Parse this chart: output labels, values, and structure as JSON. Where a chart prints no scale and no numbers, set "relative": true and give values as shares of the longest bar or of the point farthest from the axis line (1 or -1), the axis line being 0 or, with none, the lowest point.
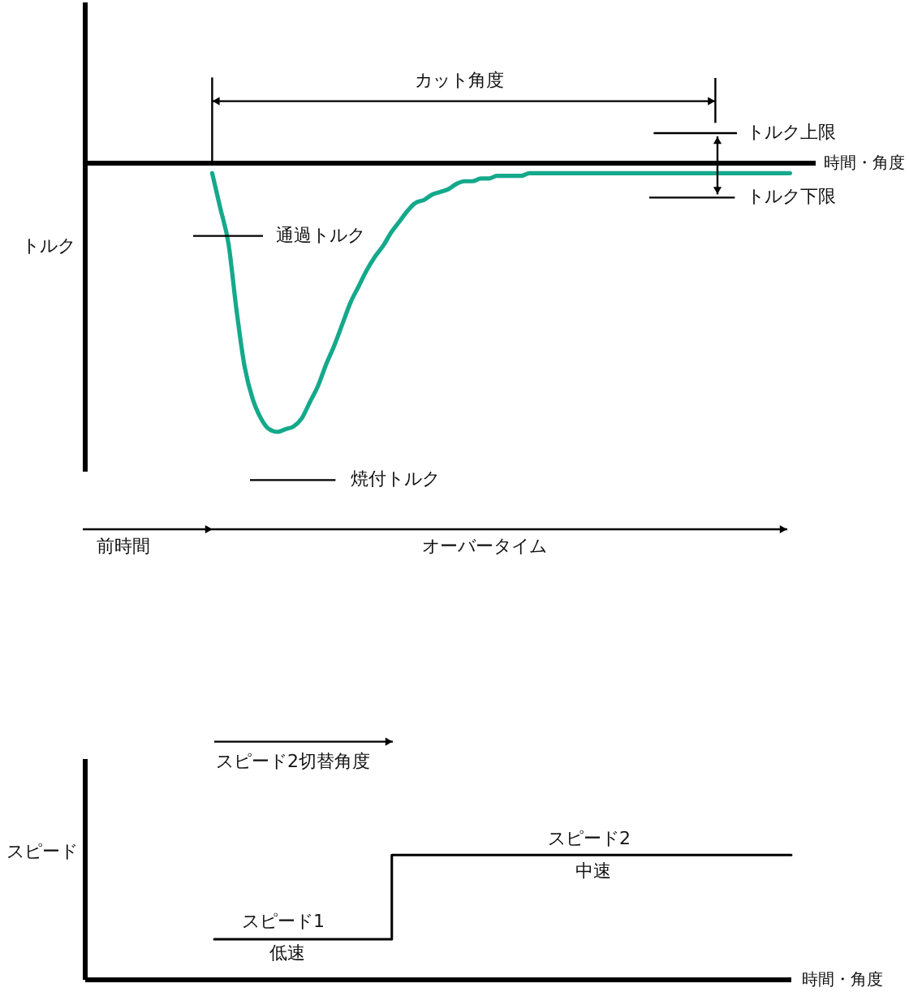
{
  "chart_data": [
    {
      "type": "line",
      "xlabel": "時間・角度",
      "ylabel": "トルク",
      "relative": true,
      "tick_labels": false,
      "color": "#14a98b",
      "categories": [
        null,
        null,
        null,
        null,
        null,
        null,
        null,
        null,
        null,
        null,
        null,
        null,
        null,
        null,
        null,
        null,
        null,
        null,
        null,
        null,
        null,
        null,
        null,
        null,
        null,
        null,
        null,
        null,
        null,
        null,
        null,
        null,
        null,
        null,
        null,
        null,
        null,
        null,
        null,
        null,
        null,
        null,
        null,
        null,
        null,
        null,
        null,
        null,
        null,
        null,
        null,
        null,
        null,
        null,
        null,
        null,
        null,
        null,
        null,
        null,
        null,
        null,
        null,
        null,
        null,
        null,
        null,
        null,
        null,
        null,
        null,
        null
      ],
      "values": [
        -0.04,
        -0.17,
        -0.3,
        -0.55,
        -0.76,
        -0.88,
        -0.95,
        -0.99,
        -1,
        -0.99,
        -0.98,
        -0.95,
        -0.89,
        -0.83,
        -0.75,
        -0.68,
        -0.6,
        -0.52,
        -0.46,
        -0.4,
        -0.35,
        -0.31,
        -0.26,
        -0.22,
        -0.18,
        -0.15,
        -0.14,
        -0.12,
        -0.11,
        -0.1,
        -0.08,
        -0.07,
        -0.07,
        -0.06,
        -0.06,
        -0.05,
        -0.05,
        -0.05,
        -0.05,
        -0.04,
        -0.04,
        -0.04,
        -0.04,
        -0.04,
        -0.04,
        -0.04,
        -0.04,
        -0.04,
        -0.04,
        -0.04,
        -0.04,
        -0.04,
        -0.04,
        -0.04,
        -0.04,
        -0.04,
        -0.04,
        -0.04,
        -0.04,
        -0.04,
        -0.04,
        -0.04,
        -0.04,
        -0.04,
        -0.04,
        -0.04,
        -0.04,
        -0.04,
        -0.04,
        -0.04,
        -0.04,
        -0.04
      ],
      "annotations": [
        "カット角度",
        "トルク上限",
        "トルク下限",
        "通過トルク",
        "焼付トルク",
        "前時間",
        "オーバータイム"
      ]
    },
    {
      "type": "step",
      "xlabel": "時間・角度",
      "ylabel": "スピード",
      "relative": true,
      "tick_labels": false,
      "color": "#000000",
      "categories": [
        null,
        null,
        null,
        null,
        null,
        null,
        null,
        null,
        null,
        null,
        null,
        null,
        null,
        null
      ],
      "values": [
        0.32,
        0.32,
        0.32,
        0.32,
        1,
        1,
        1,
        1,
        1,
        1,
        1,
        1,
        1,
        1
      ],
      "annotations": [
        "スピード2切替角度",
        "スピード2",
        "中速",
        "スピード1",
        "低速"
      ]
    }
  ]
}
